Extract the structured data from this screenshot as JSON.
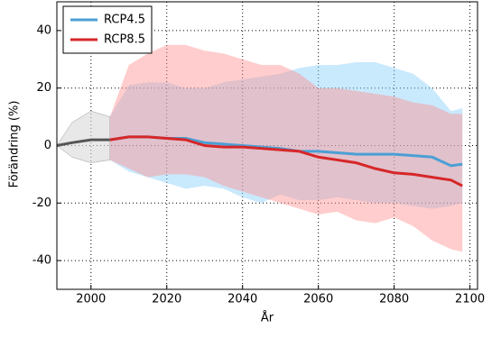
{
  "chart_data": {
    "type": "line",
    "x_label": "År",
    "y_label": "Förändring (%)",
    "xlim": [
      1991,
      2102
    ],
    "ylim": [
      -50,
      50
    ],
    "xticks": [
      2000,
      2020,
      2040,
      2060,
      2080,
      2100
    ],
    "yticks": [
      -40,
      -20,
      0,
      20,
      40
    ],
    "grid": true,
    "legend": "upper left",
    "series": [
      {
        "color": "#555555",
        "band_color": "#d9d9d9",
        "x": [
          1991,
          1995,
          2000,
          2005
        ],
        "values": [
          0,
          1,
          2,
          2
        ],
        "upper": [
          0,
          8,
          12,
          10
        ],
        "lower": [
          0,
          -4,
          -6,
          -5
        ]
      },
      {
        "name": "RCP4.5",
        "color": "#4b9fd5",
        "band_color": "#87cefa",
        "x": [
          2005,
          2010,
          2015,
          2020,
          2025,
          2030,
          2035,
          2040,
          2045,
          2050,
          2055,
          2060,
          2065,
          2070,
          2075,
          2080,
          2085,
          2090,
          2095,
          2098
        ],
        "values": [
          2,
          3,
          3,
          2.5,
          2.5,
          1,
          0.5,
          0,
          -0.5,
          -1,
          -2,
          -2,
          -2.5,
          -3,
          -3,
          -3,
          -3.5,
          -4,
          -7,
          -6.5
        ],
        "upper": [
          10,
          21,
          22,
          22,
          20,
          20,
          22,
          23,
          24,
          25,
          27,
          28,
          28,
          29,
          29,
          27,
          25,
          20,
          12,
          13
        ],
        "lower": [
          -5,
          -9,
          -11,
          -13,
          -15,
          -14,
          -15,
          -18,
          -20,
          -17,
          -19,
          -19,
          -18,
          -19,
          -20,
          -20,
          -21,
          -22,
          -21,
          -20
        ]
      },
      {
        "name": "RCP8.5",
        "color": "#d62728",
        "band_color": "#ff9090",
        "x": [
          2005,
          2010,
          2015,
          2020,
          2025,
          2030,
          2035,
          2040,
          2045,
          2050,
          2055,
          2060,
          2065,
          2070,
          2075,
          2080,
          2085,
          2090,
          2095,
          2098
        ],
        "values": [
          2,
          3,
          3,
          2.5,
          2,
          0,
          -0.5,
          -0.5,
          -1,
          -1.5,
          -2,
          -4,
          -5,
          -6,
          -8,
          -9.5,
          -10,
          -11,
          -12,
          -14
        ],
        "upper": [
          10,
          28,
          32,
          35,
          35,
          33,
          32,
          30,
          28,
          28,
          25,
          20,
          20,
          19,
          18,
          17,
          15,
          14,
          11,
          11
        ],
        "lower": [
          -5,
          -8,
          -11,
          -10,
          -10,
          -11,
          -14,
          -16,
          -18,
          -20,
          -22,
          -24,
          -23,
          -26,
          -27,
          -25,
          -28,
          -33,
          -36,
          -37
        ]
      }
    ]
  }
}
